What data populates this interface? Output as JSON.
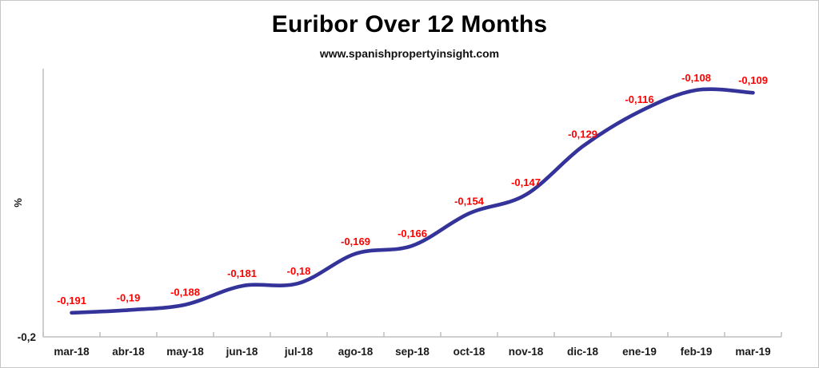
{
  "page": {
    "title": "Euribor Over 12 Months",
    "subtitle": "www.spanishpropertyinsight.com"
  },
  "chart_data": {
    "type": "line",
    "title": "Euribor Over 12 Months",
    "subtitle": "www.spanishpropertyinsight.com",
    "categories": [
      "mar-18",
      "abr-18",
      "may-18",
      "jun-18",
      "jul-18",
      "ago-18",
      "sep-18",
      "oct-18",
      "nov-18",
      "dic-18",
      "ene-19",
      "feb-19",
      "mar-19"
    ],
    "values": [
      -0.191,
      -0.19,
      -0.188,
      -0.181,
      -0.18,
      -0.169,
      -0.166,
      -0.154,
      -0.147,
      -0.129,
      -0.116,
      -0.108,
      -0.109
    ],
    "value_labels": [
      "-0,191",
      "-0,19",
      "-0,188",
      "-0,181",
      "-0,18",
      "-0,169",
      "-0,166",
      "-0,154",
      "-0,147",
      "-0,129",
      "-0,116",
      "-0,108",
      "-0,109"
    ],
    "xlabel": "",
    "ylabel": "%",
    "ytick_labels": [
      "-0,2"
    ],
    "ylim": [
      -0.2,
      -0.1
    ],
    "grid": false,
    "legend": false,
    "smooth": true,
    "line_color": "#333399",
    "label_color": "#ff0000",
    "axis_color": "#bfbfbf"
  }
}
